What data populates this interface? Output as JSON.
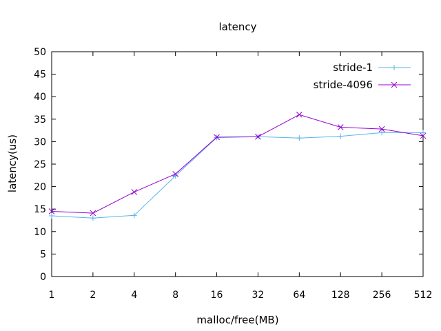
{
  "chart_data": {
    "type": "line",
    "title": "latency",
    "xlabel": "malloc/free(MB)",
    "ylabel": "latency(us)",
    "categories": [
      "1",
      "2",
      "4",
      "8",
      "16",
      "32",
      "64",
      "128",
      "256",
      "512"
    ],
    "ylim": [
      0,
      50
    ],
    "yticks": [
      "0",
      "5",
      "10",
      "15",
      "20",
      "25",
      "30",
      "35",
      "40",
      "45",
      "50"
    ],
    "grid": false,
    "legend_position": "top-right",
    "series": [
      {
        "name": "stride-1",
        "color": "#56b4e9",
        "marker": "plus",
        "values": [
          13.5,
          13.0,
          13.6,
          22.4,
          30.9,
          31.1,
          30.8,
          31.2,
          32.0,
          32.0
        ]
      },
      {
        "name": "stride-4096",
        "color": "#9400d3",
        "marker": "cross",
        "values": [
          14.5,
          14.1,
          18.8,
          22.8,
          31.0,
          31.1,
          36.0,
          33.2,
          32.8,
          31.3
        ]
      }
    ]
  }
}
